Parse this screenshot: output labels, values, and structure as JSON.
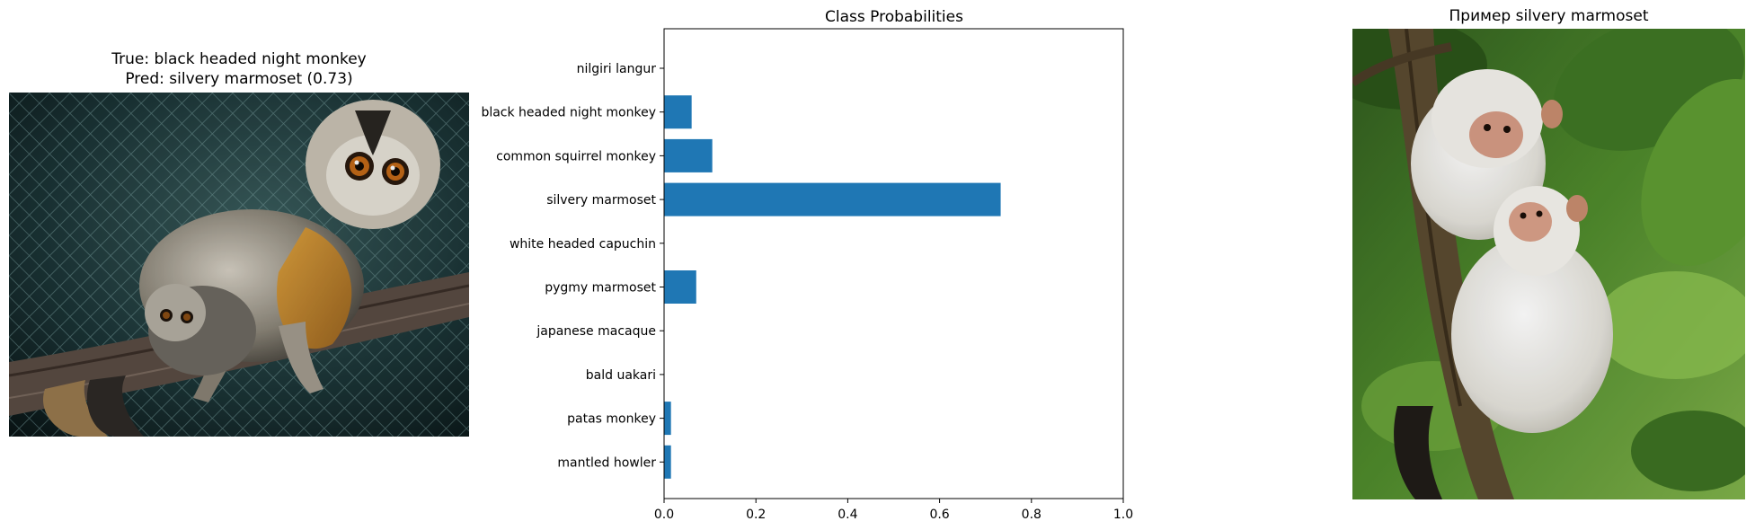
{
  "left_panel": {
    "title_line1": "True: black headed night monkey",
    "title_line2": "Pred: silvery marmoset (0.73)",
    "image_subject": "night-monkey-photo"
  },
  "right_panel": {
    "title": "Пример silvery marmoset",
    "image_subject": "silvery-marmoset-photo"
  },
  "chart_data": {
    "type": "bar",
    "orientation": "horizontal",
    "title": "Class Probabilities",
    "xlabel": "",
    "ylabel": "",
    "categories": [
      "nilgiri langur",
      "black headed night monkey",
      "common squirrel monkey",
      "silvery marmoset",
      "white headed capuchin",
      "pygmy marmoset",
      "japanese macaque",
      "bald uakari",
      "patas monkey",
      "mantled howler"
    ],
    "values": [
      0.0,
      0.06,
      0.105,
      0.733,
      0.0,
      0.07,
      0.0,
      0.0,
      0.015,
      0.015
    ],
    "xlim": [
      0,
      1.0
    ],
    "xticks": [
      "0.0",
      "0.2",
      "0.4",
      "0.6",
      "0.8",
      "1.0"
    ],
    "bar_color": "#1f77b4",
    "grid": false
  }
}
